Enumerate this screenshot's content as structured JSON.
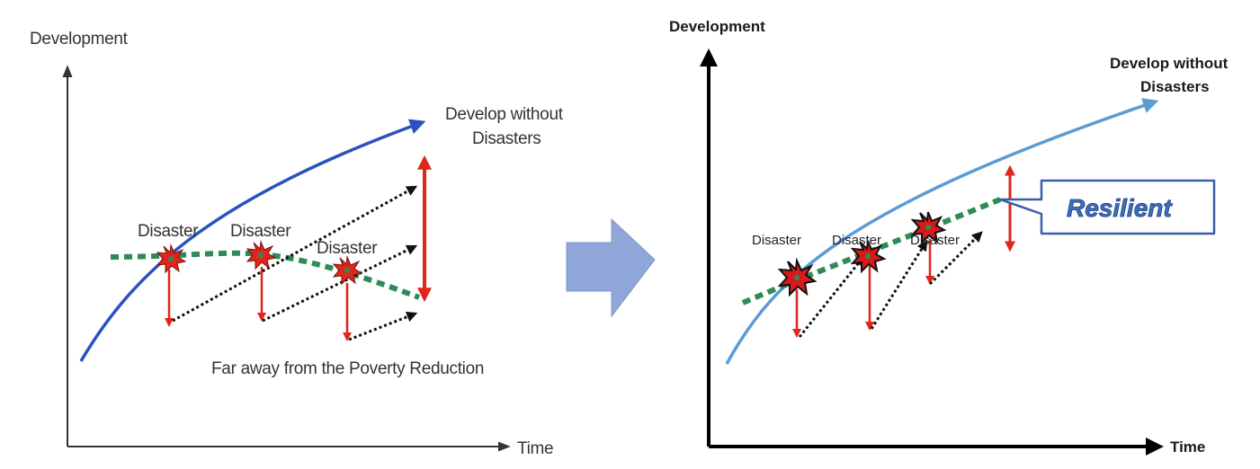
{
  "left_diagram": {
    "y_axis_label": "Development",
    "x_axis_label": "Time",
    "ideal_path_label_line1": "Develop without",
    "ideal_path_label_line2": "Disasters",
    "disaster_labels": [
      "Disaster",
      "Disaster",
      "Disaster"
    ],
    "caption": "Far away from the Poverty Reduction"
  },
  "right_diagram": {
    "y_axis_label": "Development",
    "x_axis_label": "Time",
    "ideal_path_label_line1": "Develop without",
    "ideal_path_label_line2": "Disasters",
    "disaster_labels": [
      "Disaster",
      "Disaster",
      "Disaster"
    ],
    "callout_label": "Resilient"
  },
  "colors": {
    "left_ideal_curve": "#2a52be",
    "right_ideal_curve": "#5b9bd5",
    "actual_path": "#2e8b57",
    "impact_arrow": "#e0261b",
    "recovery_arrow": "#111111",
    "transition_arrow": "#8ea6d8",
    "callout_border": "#3a5fa8"
  }
}
